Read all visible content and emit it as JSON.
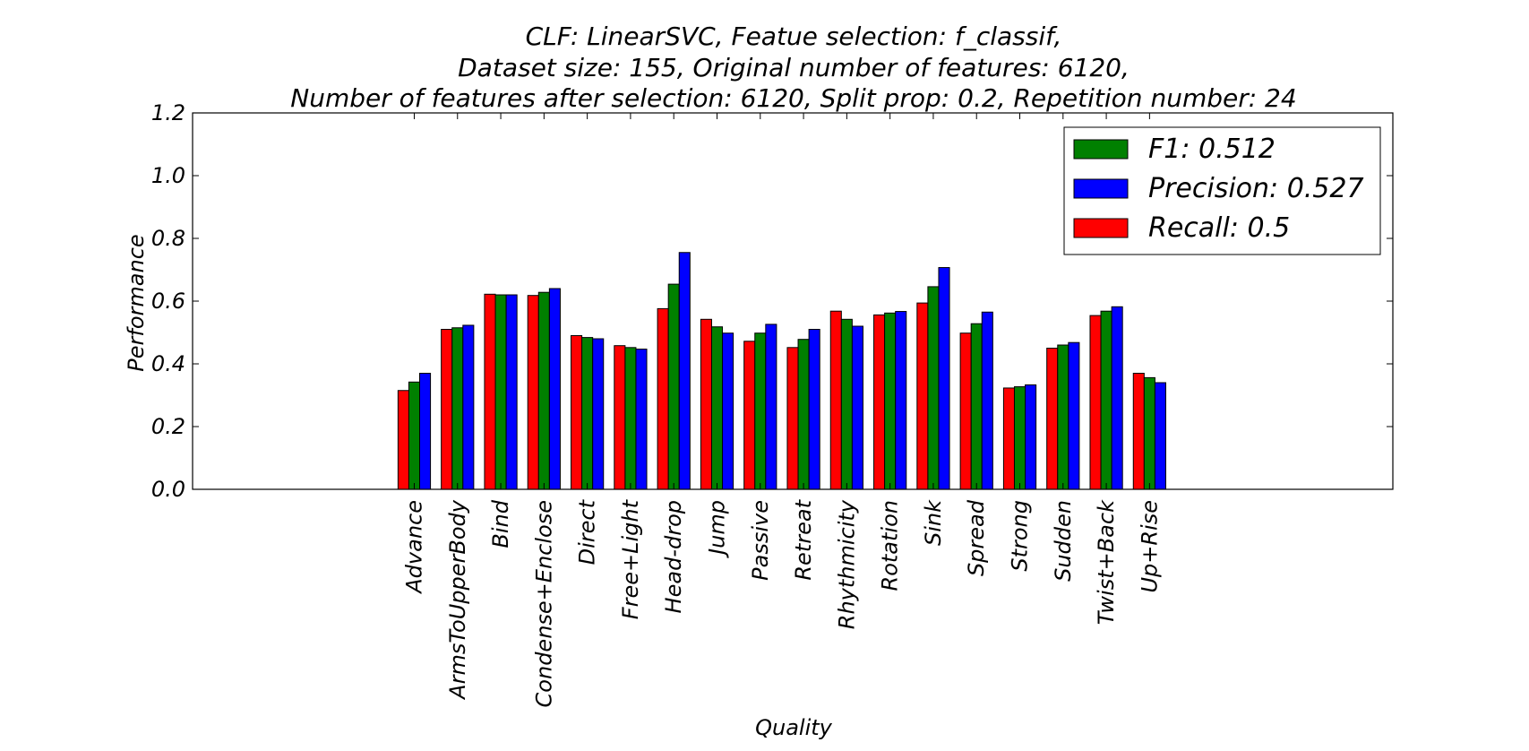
{
  "chart_data": {
    "type": "bar",
    "title_lines": [
      "CLF: LinearSVC, Featue selection: f_classif,",
      "Dataset size: 155, Original number of features: 6120,",
      "Number of features after selection: 6120, Split prop: 0.2, Repetition number: 24"
    ],
    "xlabel": "Quality",
    "ylabel": "Performance",
    "ylim": [
      0,
      1.2
    ],
    "yticks": [
      "0.0",
      "0.2",
      "0.4",
      "0.6",
      "0.8",
      "1.0",
      "1.2"
    ],
    "grid": false,
    "legend_position": "top-right",
    "categories": [
      "Advance",
      "ArmsToUpperBody",
      "Bind",
      "Condense+Enclose",
      "Direct",
      "Free+Light",
      "Head-drop",
      "Jump",
      "Passive",
      "Retreat",
      "Rhythmicity",
      "Rotation",
      "Sink",
      "Spread",
      "Strong",
      "Sudden",
      "Twist+Back",
      "Up+Rise"
    ],
    "series": [
      {
        "name": "Recall",
        "legend_label": "Recall: 0.5",
        "color": "#ff0000",
        "values": [
          0.315,
          0.51,
          0.622,
          0.618,
          0.49,
          0.458,
          0.576,
          0.542,
          0.472,
          0.452,
          0.568,
          0.556,
          0.594,
          0.498,
          0.323,
          0.45,
          0.554,
          0.37
        ]
      },
      {
        "name": "F1",
        "legend_label": "F1: 0.512",
        "color": "#008000",
        "values": [
          0.342,
          0.515,
          0.62,
          0.628,
          0.484,
          0.452,
          0.654,
          0.518,
          0.498,
          0.478,
          0.542,
          0.562,
          0.646,
          0.528,
          0.327,
          0.46,
          0.568,
          0.356
        ]
      },
      {
        "name": "Precision",
        "legend_label": "Precision: 0.527",
        "color": "#0000ff",
        "values": [
          0.37,
          0.523,
          0.62,
          0.64,
          0.48,
          0.447,
          0.755,
          0.498,
          0.526,
          0.51,
          0.52,
          0.567,
          0.707,
          0.565,
          0.333,
          0.468,
          0.582,
          0.34
        ]
      }
    ],
    "legend_order": [
      "F1",
      "Precision",
      "Recall"
    ]
  }
}
